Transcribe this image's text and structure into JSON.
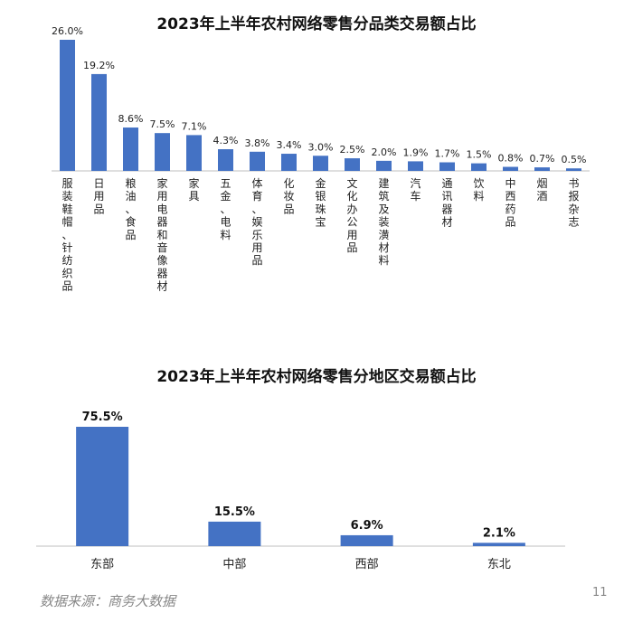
{
  "chart_data": [
    {
      "type": "bar",
      "title": "2023年上半年农村网络零售分品类交易额占比",
      "categories": [
        "服装鞋帽、针纺织品",
        "日用品",
        "粮油、食品",
        "家用电器和音像器材",
        "家具",
        "五金、电料",
        "体育、娱乐用品",
        "化妆品",
        "金银珠宝",
        "文化办公用品",
        "建筑及装潢材料",
        "汽车",
        "通讯器材",
        "饮料",
        "中西药品",
        "烟酒",
        "书报杂志"
      ],
      "values": [
        26.0,
        19.2,
        8.6,
        7.5,
        7.1,
        4.3,
        3.8,
        3.4,
        3.0,
        2.5,
        2.0,
        1.9,
        1.7,
        1.5,
        0.8,
        0.7,
        0.5
      ],
      "value_labels": [
        "26.0%",
        "19.2%",
        "8.6%",
        "7.5%",
        "7.1%",
        "4.3%",
        "3.8%",
        "3.4%",
        "3.0%",
        "2.5%",
        "2.0%",
        "1.9%",
        "1.7%",
        "1.5%",
        "0.8%",
        "0.7%",
        "0.5%"
      ],
      "xlabel": "",
      "ylabel": "",
      "ylim": [
        0,
        26.0
      ],
      "grid": false,
      "bar_color": "#4472C4"
    },
    {
      "type": "bar",
      "title": "2023年上半年农村网络零售分地区交易额占比",
      "categories": [
        "东部",
        "中部",
        "西部",
        "东北"
      ],
      "values": [
        75.5,
        15.5,
        6.9,
        2.1
      ],
      "value_labels": [
        "75.5%",
        "15.5%",
        "6.9%",
        "2.1%"
      ],
      "xlabel": "",
      "ylabel": "",
      "ylim": [
        0,
        75.5
      ],
      "grid": false,
      "bar_color": "#4472C4"
    }
  ],
  "footer": {
    "source": "数据来源：商务大数据",
    "page_number": "11"
  }
}
